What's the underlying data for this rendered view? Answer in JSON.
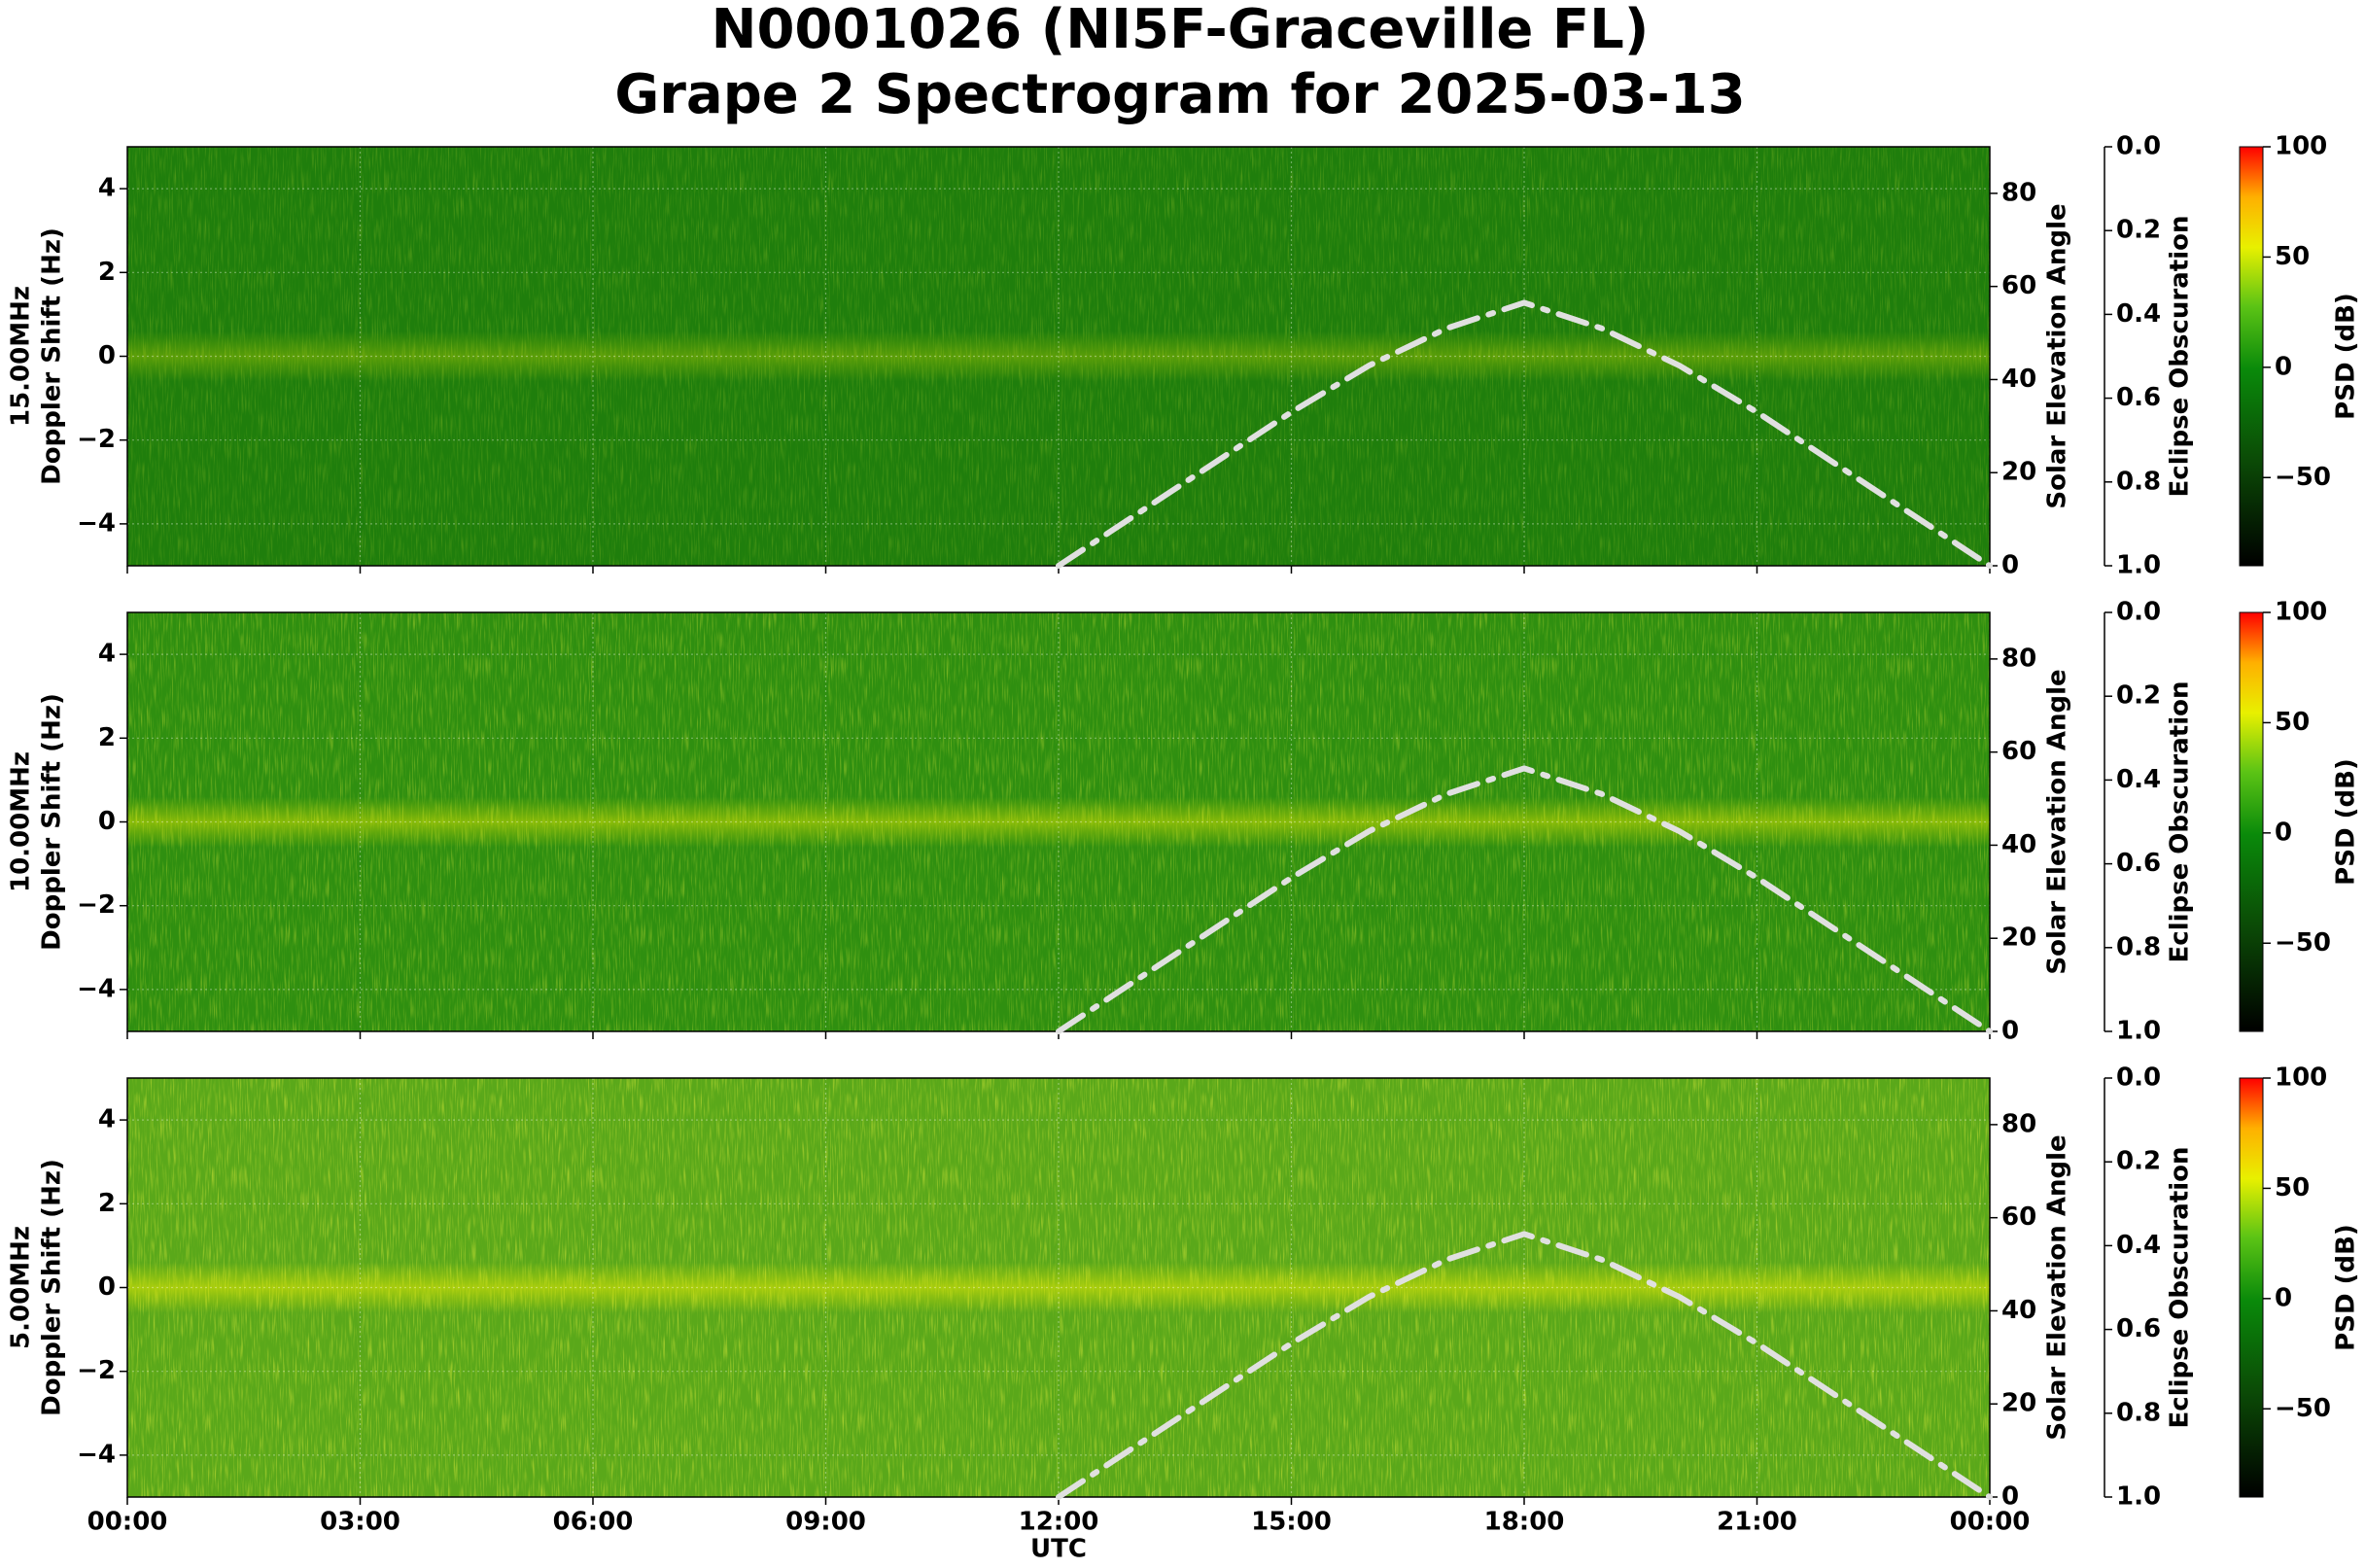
{
  "title": [
    "N0001026 (NI5F-Graceville FL)",
    "Grape 2 Spectrogram for 2025-03-13"
  ],
  "chart_data": [
    {
      "type": "spectrogram",
      "ylabel": [
        "15.00MHz",
        "Doppler Shift (Hz)"
      ],
      "ylim": [
        -5,
        5
      ],
      "yticks": [
        {
          "value": -4,
          "label": "−4"
        },
        {
          "value": -2,
          "label": "−2"
        },
        0,
        2,
        4
      ],
      "y2label": "Solar Elevation Angle",
      "y2lim": [
        0,
        90
      ],
      "y2ticks": [
        0,
        20,
        40,
        60,
        80
      ],
      "y3label": "Eclipse Obscuration",
      "y3lim": [
        0,
        1
      ],
      "y3_inverted": true,
      "y3ticks": [
        {
          "value": 0,
          "label": "0.0"
        },
        0.2,
        0.4,
        0.6,
        0.8,
        {
          "value": 1,
          "label": "1.0"
        }
      ],
      "colorbar_label": "PSD (dB)",
      "clim": [
        -90,
        100
      ],
      "cticks": [
        {
          "value": -50,
          "label": "−50"
        },
        0,
        50,
        100
      ],
      "xlim": [
        0,
        24
      ],
      "xticks": [
        0,
        3,
        6,
        9,
        12,
        15,
        18,
        21,
        24
      ],
      "grid": true,
      "series": [
        {
          "x": [
            12,
            13,
            14,
            15,
            16,
            17,
            18,
            19,
            20,
            21,
            22,
            23,
            24
          ],
          "values": [
            0,
            11,
            22,
            33,
            43,
            51,
            56.5,
            51,
            43,
            33,
            22,
            11,
            0
          ],
          "color": "#e0e0e0",
          "axis": "y2"
        }
      ]
    },
    {
      "type": "spectrogram",
      "ylabel": [
        "10.00MHz",
        "Doppler Shift (Hz)"
      ],
      "ylim": [
        -5,
        5
      ],
      "yticks": [
        {
          "value": -4,
          "label": "−4"
        },
        {
          "value": -2,
          "label": "−2"
        },
        0,
        2,
        4
      ],
      "y2label": "Solar Elevation Angle",
      "y2lim": [
        0,
        90
      ],
      "y2ticks": [
        0,
        20,
        40,
        60,
        80
      ],
      "y3label": "Eclipse Obscuration",
      "y3lim": [
        0,
        1
      ],
      "y3_inverted": true,
      "y3ticks": [
        {
          "value": 0,
          "label": "0.0"
        },
        0.2,
        0.4,
        0.6,
        0.8,
        {
          "value": 1,
          "label": "1.0"
        }
      ],
      "colorbar_label": "PSD (dB)",
      "clim": [
        -90,
        100
      ],
      "cticks": [
        {
          "value": -50,
          "label": "−50"
        },
        0,
        50,
        100
      ],
      "xlim": [
        0,
        24
      ],
      "xticks": [
        0,
        3,
        6,
        9,
        12,
        15,
        18,
        21,
        24
      ],
      "grid": true,
      "series": [
        {
          "x": [
            12,
            13,
            14,
            15,
            16,
            17,
            18,
            19,
            20,
            21,
            22,
            23,
            24
          ],
          "values": [
            0,
            11,
            22,
            33,
            43,
            51,
            56.5,
            51,
            43,
            33,
            22,
            11,
            0
          ],
          "color": "#e0e0e0",
          "axis": "y2"
        }
      ]
    },
    {
      "type": "spectrogram",
      "ylabel": [
        "5.00MHz",
        "Doppler Shift (Hz)"
      ],
      "ylim": [
        -5,
        5
      ],
      "yticks": [
        {
          "value": -4,
          "label": "−4"
        },
        {
          "value": -2,
          "label": "−2"
        },
        0,
        2,
        4
      ],
      "y2label": "Solar Elevation Angle",
      "y2lim": [
        0,
        90
      ],
      "y2ticks": [
        0,
        20,
        40,
        60,
        80
      ],
      "y3label": "Eclipse Obscuration",
      "y3lim": [
        0,
        1
      ],
      "y3_inverted": true,
      "y3ticks": [
        {
          "value": 0,
          "label": "0.0"
        },
        0.2,
        0.4,
        0.6,
        0.8,
        {
          "value": 1,
          "label": "1.0"
        }
      ],
      "colorbar_label": "PSD (dB)",
      "clim": [
        -90,
        100
      ],
      "cticks": [
        {
          "value": -50,
          "label": "−50"
        },
        0,
        50,
        100
      ],
      "xlabel": "UTC",
      "xlim": [
        0,
        24
      ],
      "xticks": [
        {
          "value": 0,
          "label": "00:00"
        },
        {
          "value": 3,
          "label": "03:00"
        },
        {
          "value": 6,
          "label": "06:00"
        },
        {
          "value": 9,
          "label": "09:00"
        },
        {
          "value": 12,
          "label": "12:00"
        },
        {
          "value": 15,
          "label": "15:00"
        },
        {
          "value": 18,
          "label": "18:00"
        },
        {
          "value": 21,
          "label": "21:00"
        },
        {
          "value": 24,
          "label": "00:00"
        }
      ],
      "grid": true,
      "series": [
        {
          "x": [
            12,
            13,
            14,
            15,
            16,
            17,
            18,
            19,
            20,
            21,
            22,
            23,
            24
          ],
          "values": [
            0,
            11,
            22,
            33,
            43,
            51,
            56.5,
            51,
            43,
            33,
            22,
            11,
            0
          ],
          "color": "#e0e0e0",
          "axis": "y2"
        }
      ]
    }
  ]
}
